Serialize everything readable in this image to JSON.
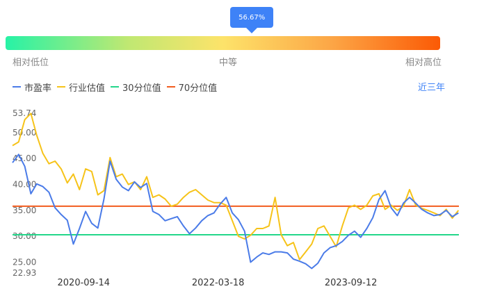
{
  "gauge": {
    "marker_label": "56.67%",
    "percentile": 56.67,
    "low_label": "相对低位",
    "mid_label": "中等",
    "high_label": "相对高位"
  },
  "legend": {
    "pe_label": "市盈率",
    "industry_label": "行业估值",
    "p30_label": "30分位值",
    "p70_label": "70分位值"
  },
  "range_button": "近三年",
  "colors": {
    "pe": "#4a7be8",
    "industry": "#f6c319",
    "p30": "#23d68a",
    "p70": "#f25c1e",
    "accent": "#3e82f7"
  },
  "chart_data": {
    "type": "line",
    "y_ticks": [
      "53.74",
      "50.00",
      "45.00",
      "40.00",
      "35.00",
      "30.00",
      "25.00",
      "22.93"
    ],
    "ylim": [
      22.93,
      53.74
    ],
    "x_ticks": [
      "2020-09-14",
      "2022-03-18",
      "2023-09-12"
    ],
    "x_range": [
      "2019-11-28",
      "2024-11-27"
    ],
    "lines": [
      {
        "name": "30分位值",
        "value": 30.3
      },
      {
        "name": "70分位值",
        "value": 35.8
      }
    ],
    "series": [
      {
        "name": "市盈率",
        "x": [
          "2019-11-28",
          "2019-12-23",
          "2020-01-17",
          "2020-02-11",
          "2020-03-06",
          "2020-03-31",
          "2020-04-25",
          "2020-05-20",
          "2020-06-14",
          "2020-07-09",
          "2020-08-03",
          "2020-08-28",
          "2020-09-22",
          "2020-10-17",
          "2020-11-11",
          "2020-12-06",
          "2020-12-31",
          "2021-01-25",
          "2021-02-19",
          "2021-03-16",
          "2021-04-10",
          "2021-05-05",
          "2021-05-30",
          "2021-06-24",
          "2021-07-19",
          "2021-08-13",
          "2021-09-07",
          "2021-10-02",
          "2021-10-27",
          "2021-11-21",
          "2021-12-16",
          "2022-01-10",
          "2022-02-04",
          "2022-03-01",
          "2022-03-26",
          "2022-04-20",
          "2022-05-15",
          "2022-06-09",
          "2022-07-04",
          "2022-07-29",
          "2022-08-23",
          "2022-09-17",
          "2022-10-12",
          "2022-11-06",
          "2022-12-01",
          "2022-12-26",
          "2023-01-20",
          "2023-02-14",
          "2023-03-11",
          "2023-04-05",
          "2023-04-30",
          "2023-05-25",
          "2023-06-19",
          "2023-07-14",
          "2023-08-08",
          "2023-09-02",
          "2023-09-27",
          "2023-10-22",
          "2023-11-16",
          "2023-12-11",
          "2024-01-05",
          "2024-01-30",
          "2024-02-24",
          "2024-03-20",
          "2024-04-14",
          "2024-05-09",
          "2024-06-03",
          "2024-06-28",
          "2024-07-23",
          "2024-08-17",
          "2024-09-11",
          "2024-10-06",
          "2024-10-31",
          "2024-11-25"
        ],
        "values": [
          44.2,
          45.8,
          43.5,
          38.2,
          40.1,
          39.6,
          38.5,
          35.5,
          34.2,
          33.1,
          28.5,
          31.5,
          34.8,
          32.5,
          31.6,
          37.2,
          44.5,
          41.0,
          39.5,
          38.8,
          40.5,
          39.4,
          40.2,
          34.8,
          34.2,
          33.0,
          33.4,
          33.8,
          32.0,
          30.5,
          31.6,
          33.0,
          34.0,
          34.5,
          36.2,
          37.5,
          34.5,
          33.2,
          31.0,
          25.0,
          26.0,
          26.8,
          26.5,
          27.0,
          27.0,
          26.8,
          25.6,
          25.2,
          24.7,
          23.8,
          24.8,
          26.8,
          27.8,
          28.2,
          29.0,
          30.2,
          31.0,
          29.8,
          31.5,
          33.6,
          37.1,
          38.8,
          35.5,
          34.0,
          36.4,
          37.5,
          36.4,
          35.2,
          34.5,
          34.0,
          34.2,
          35.0,
          33.8,
          34.5
        ]
      },
      {
        "name": "行业估值",
        "x": [
          "2019-11-28",
          "2019-12-23",
          "2020-01-17",
          "2020-02-11",
          "2020-03-06",
          "2020-03-31",
          "2020-04-25",
          "2020-05-20",
          "2020-06-14",
          "2020-07-09",
          "2020-08-03",
          "2020-08-28",
          "2020-09-22",
          "2020-10-17",
          "2020-11-11",
          "2020-12-06",
          "2020-12-31",
          "2021-01-25",
          "2021-02-19",
          "2021-03-16",
          "2021-04-10",
          "2021-05-05",
          "2021-05-30",
          "2021-06-24",
          "2021-07-19",
          "2021-08-13",
          "2021-09-07",
          "2021-10-02",
          "2021-10-27",
          "2021-11-21",
          "2021-12-16",
          "2022-01-10",
          "2022-02-04",
          "2022-03-01",
          "2022-03-26",
          "2022-04-20",
          "2022-05-15",
          "2022-06-09",
          "2022-07-04",
          "2022-07-29",
          "2022-08-23",
          "2022-09-17",
          "2022-10-12",
          "2022-11-06",
          "2022-12-01",
          "2022-12-26",
          "2023-01-20",
          "2023-02-14",
          "2023-03-11",
          "2023-04-05",
          "2023-04-30",
          "2023-05-25",
          "2023-06-19",
          "2023-07-14",
          "2023-08-08",
          "2023-09-02",
          "2023-09-27",
          "2023-10-22",
          "2023-11-16",
          "2023-12-11",
          "2024-01-05",
          "2024-01-30",
          "2024-02-24",
          "2024-03-20",
          "2024-04-14",
          "2024-05-09",
          "2024-06-03",
          "2024-06-28",
          "2024-07-23",
          "2024-08-17",
          "2024-09-11",
          "2024-10-06",
          "2024-10-31",
          "2024-11-25"
        ],
        "values": [
          47.5,
          48.2,
          52.5,
          53.7,
          49.5,
          46.0,
          44.0,
          44.5,
          43.0,
          40.3,
          42.0,
          39.0,
          43.0,
          42.5,
          38.0,
          38.8,
          45.2,
          41.5,
          42.0,
          40.0,
          40.5,
          39.0,
          41.5,
          37.5,
          38.0,
          37.2,
          35.8,
          36.2,
          37.5,
          38.5,
          39.0,
          38.0,
          37.0,
          36.5,
          36.5,
          36.0,
          33.0,
          30.0,
          29.5,
          30.2,
          31.5,
          31.5,
          32.0,
          37.5,
          30.3,
          28.2,
          28.8,
          25.5,
          27.0,
          28.5,
          31.5,
          32.0,
          30.0,
          28.0,
          32.0,
          35.5,
          36.0,
          35.2,
          36.0,
          37.8,
          38.2,
          35.2,
          36.0,
          35.0,
          35.8,
          39.0,
          36.0,
          35.4,
          35.0,
          34.5,
          34.0,
          35.2,
          33.5,
          35.0
        ]
      }
    ]
  }
}
